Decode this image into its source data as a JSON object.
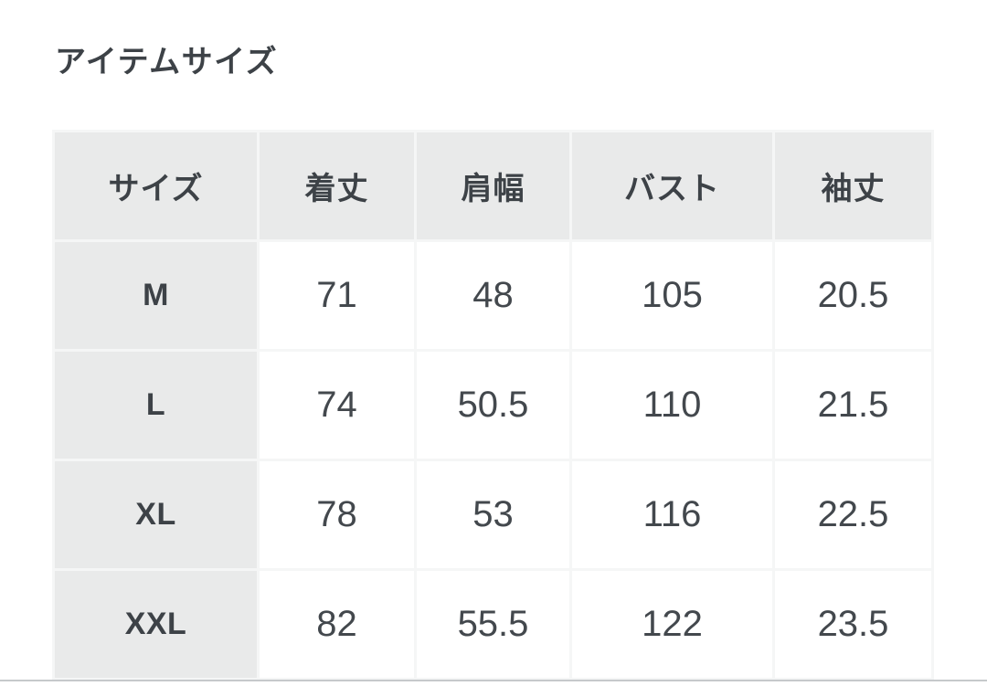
{
  "page": {
    "title": "アイテムサイズ"
  },
  "size_table": {
    "columns": [
      "サイズ",
      "着丈",
      "肩幅",
      "バスト",
      "袖丈"
    ],
    "rows": [
      {
        "size": "M",
        "values": [
          "71",
          "48",
          "105",
          "20.5"
        ]
      },
      {
        "size": "L",
        "values": [
          "74",
          "50.5",
          "110",
          "21.5"
        ]
      },
      {
        "size": "XL",
        "values": [
          "78",
          "53",
          "116",
          "22.5"
        ]
      },
      {
        "size": "XXL",
        "values": [
          "82",
          "55.5",
          "122",
          "23.5"
        ]
      }
    ]
  },
  "colors": {
    "header_background": "#e9eaea",
    "cell_background": "#ffffff",
    "cell_border": "#f5f6f6",
    "text": "#3d4247",
    "bottom_divider": "#c6c9cb"
  }
}
